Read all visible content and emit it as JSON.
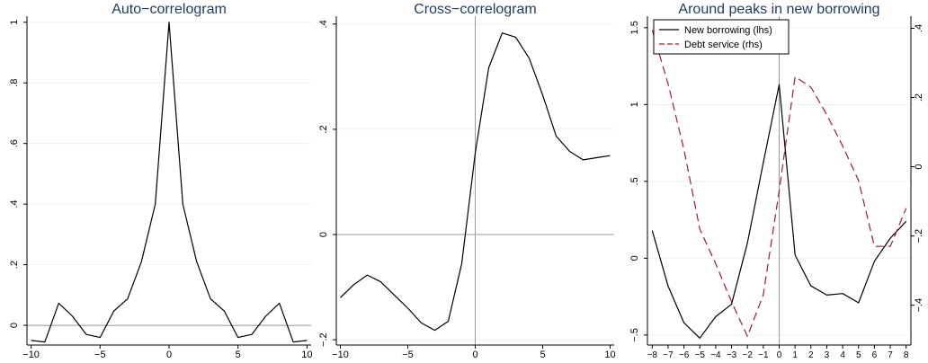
{
  "chart_data": [
    {
      "type": "line",
      "title": "Auto−correlogram",
      "xlabel": "",
      "ylabel": "",
      "xlim": [
        -10.3,
        10.3
      ],
      "ylim": [
        -0.065,
        1.02
      ],
      "xticks": [
        -10,
        -5,
        0,
        5,
        10
      ],
      "xtick_labels": [
        "−10",
        "−5",
        "0",
        "5",
        "10"
      ],
      "yticks": [
        0,
        0.2,
        0.4,
        0.6,
        0.8,
        1
      ],
      "ytick_labels": [
        "0",
        ".2",
        ".4",
        ".6",
        ".8",
        "1"
      ],
      "hlines": [
        0
      ],
      "vlines": [],
      "grid": "horizontal",
      "series": [
        {
          "color": "#000000",
          "dash": "",
          "x": [
            -10,
            -9,
            -8,
            -7,
            -6,
            -5,
            -4,
            -3,
            -2,
            -1,
            0,
            1,
            2,
            3,
            4,
            5,
            6,
            7,
            8,
            9,
            10
          ],
          "y": [
            -0.05,
            -0.055,
            0.073,
            0.03,
            -0.03,
            -0.04,
            0.047,
            0.088,
            0.21,
            0.4,
            1.0,
            0.4,
            0.21,
            0.088,
            0.047,
            -0.04,
            -0.03,
            0.03,
            0.073,
            -0.055,
            -0.05
          ]
        }
      ]
    },
    {
      "type": "line",
      "title": "Cross−correlogram",
      "xlabel": "",
      "ylabel": "",
      "xlim": [
        -10.3,
        10.3
      ],
      "ylim": [
        -0.21,
        0.415
      ],
      "xticks": [
        -10,
        -5,
        0,
        5,
        10
      ],
      "xtick_labels": [
        "−10",
        "−5",
        "0",
        "5",
        "10"
      ],
      "yticks": [
        -0.2,
        0,
        0.2,
        0.4
      ],
      "ytick_labels": [
        "−.2",
        "0",
        ".2",
        ".4"
      ],
      "hlines": [
        0
      ],
      "vlines": [
        0
      ],
      "grid": "horizontal",
      "series": [
        {
          "color": "#000000",
          "dash": "",
          "x": [
            -10,
            -9,
            -8,
            -7,
            -6,
            -5,
            -4,
            -3,
            -2,
            -1,
            0,
            1,
            2,
            3,
            4,
            5,
            6,
            7,
            8,
            9,
            10
          ],
          "y": [
            -0.12,
            -0.095,
            -0.077,
            -0.09,
            -0.115,
            -0.14,
            -0.168,
            -0.182,
            -0.165,
            -0.055,
            0.155,
            0.317,
            0.383,
            0.375,
            0.335,
            0.265,
            0.187,
            0.158,
            0.142,
            0.146,
            0.15
          ]
        }
      ]
    },
    {
      "type": "line",
      "title": "Around peaks in new borrowing",
      "xlabel": "",
      "ylabel": "",
      "xlim": [
        -8.3,
        8.3
      ],
      "ylim": [
        -0.565,
        1.575
      ],
      "xticks": [
        -8,
        -7,
        -6,
        -5,
        -4,
        -3,
        -2,
        -1,
        0,
        1,
        2,
        3,
        4,
        5,
        6,
        7,
        8
      ],
      "xtick_labels": [
        "−8",
        "−7",
        "−6",
        "−5",
        "−4",
        "−3",
        "−2",
        "−1",
        "0",
        "1",
        "2",
        "3",
        "4",
        "5",
        "6",
        "7",
        "8"
      ],
      "yticks": [
        -0.5,
        0,
        0.5,
        1,
        1.5
      ],
      "ytick_labels": [
        "−.5",
        "0",
        ".5",
        "1",
        "1.5"
      ],
      "y2lim": [
        -0.515,
        0.435
      ],
      "y2ticks": [
        -0.4,
        -0.2,
        0,
        0.2,
        0.4
      ],
      "y2tick_labels": [
        "−.4",
        "−.2",
        "0",
        ".2",
        ".4"
      ],
      "hlines": [],
      "vlines": [
        0
      ],
      "grid": "horizontal",
      "legend_position": "top-left",
      "series": [
        {
          "name": "New borrowing (lhs)",
          "axis": "left",
          "color": "#000000",
          "dash": "",
          "x": [
            -8,
            -7,
            -6,
            -5,
            -4,
            -3,
            -2,
            -1,
            0,
            1,
            2,
            3,
            4,
            5,
            6,
            7,
            8
          ],
          "y": [
            0.18,
            -0.18,
            -0.42,
            -0.52,
            -0.38,
            -0.3,
            0.1,
            0.62,
            1.13,
            0.02,
            -0.18,
            -0.24,
            -0.23,
            -0.29,
            -0.02,
            0.13,
            0.24
          ]
        },
        {
          "name": "Debt service (rhs)",
          "axis": "right",
          "color": "#a11d2b",
          "dash": "9,5",
          "x": [
            -8,
            -7,
            -6,
            -5,
            -4,
            -3,
            -2,
            -1,
            0,
            1,
            2,
            3,
            4,
            5,
            6,
            7,
            8
          ],
          "y": [
            0.395,
            0.24,
            0.05,
            -0.18,
            -0.28,
            -0.39,
            -0.49,
            -0.37,
            -0.07,
            0.26,
            0.23,
            0.15,
            0.06,
            -0.04,
            -0.23,
            -0.23,
            -0.12
          ]
        }
      ]
    }
  ]
}
